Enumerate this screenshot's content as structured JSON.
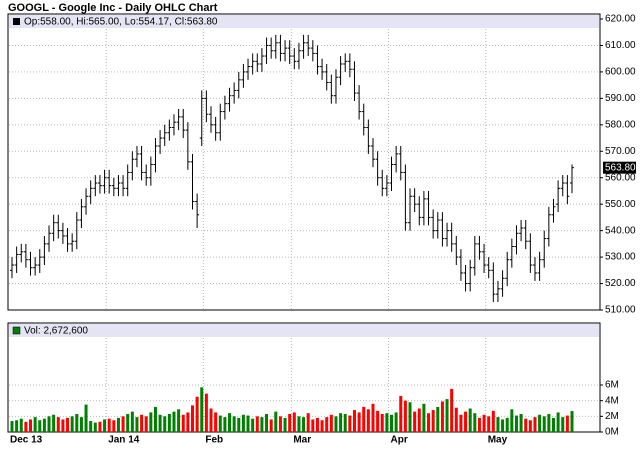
{
  "chart_data": [
    {
      "type": "ohlc",
      "title": "GOOGL - Google Inc - Daily OHLC Chart",
      "legend_label": "Op:558.00, Hi:565.00, Lo:554.17, Cl:563.80",
      "last_price": {
        "value": 563.8,
        "label": "563.80"
      },
      "categories": [
        "Dec 13",
        null,
        null,
        null,
        null,
        null,
        null,
        null,
        null,
        null,
        null,
        null,
        null,
        null,
        null,
        null,
        null,
        null,
        null,
        null,
        null,
        "Jan 14",
        null,
        null,
        null,
        null,
        null,
        null,
        null,
        null,
        null,
        null,
        null,
        null,
        null,
        null,
        null,
        null,
        null,
        null,
        null,
        null,
        "Feb",
        null,
        null,
        null,
        null,
        null,
        null,
        null,
        null,
        null,
        null,
        null,
        null,
        null,
        null,
        null,
        null,
        null,
        null,
        "Mar",
        null,
        null,
        null,
        null,
        null,
        null,
        null,
        null,
        null,
        null,
        null,
        null,
        null,
        null,
        null,
        null,
        null,
        null,
        null,
        null,
        "Apr",
        null,
        null,
        null,
        null,
        null,
        null,
        null,
        null,
        null,
        null,
        null,
        null,
        null,
        null,
        null,
        null,
        null,
        null,
        null,
        null,
        "May",
        null,
        null,
        null,
        null,
        null,
        null,
        null,
        null,
        null,
        null,
        null,
        null,
        null,
        null,
        null,
        null,
        null,
        null
      ],
      "open": [
        525,
        527,
        531,
        532,
        529,
        526,
        527,
        530,
        535,
        539,
        543,
        540,
        538,
        535,
        536,
        544,
        549,
        553,
        556,
        558,
        557,
        560,
        557,
        556,
        558,
        556,
        562,
        567,
        569,
        562,
        560,
        565,
        572,
        575,
        577,
        579,
        581,
        583,
        578,
        566,
        551,
        575,
        590,
        584,
        580,
        577,
        585,
        588,
        591,
        593,
        597,
        600,
        602,
        604,
        603,
        606,
        610,
        608,
        611,
        607,
        609,
        606,
        604,
        608,
        611,
        609,
        607,
        602,
        600,
        596,
        591,
        598,
        603,
        604,
        601,
        592,
        585,
        579,
        572,
        567,
        560,
        556,
        558,
        565,
        569,
        562,
        543,
        553,
        550,
        545,
        552,
        545,
        540,
        544,
        537,
        540,
        535,
        530,
        524,
        520,
        526,
        535,
        532,
        527,
        525,
        516,
        518,
        522,
        529,
        534,
        539,
        541,
        536,
        527,
        524,
        529,
        537,
        546,
        550,
        556,
        558,
        558
      ],
      "high": [
        530,
        534,
        535,
        535,
        532,
        530,
        533,
        538,
        542,
        546,
        546,
        543,
        541,
        539,
        547,
        552,
        556,
        559,
        561,
        561,
        563,
        563,
        560,
        561,
        561,
        565,
        570,
        572,
        572,
        565,
        568,
        575,
        578,
        580,
        582,
        584,
        586,
        586,
        581,
        569,
        554,
        593,
        593,
        587,
        583,
        588,
        591,
        594,
        596,
        600,
        603,
        605,
        607,
        607,
        609,
        613,
        613,
        614,
        614,
        612,
        612,
        609,
        611,
        614,
        614,
        612,
        610,
        605,
        603,
        599,
        601,
        606,
        607,
        607,
        604,
        595,
        588,
        582,
        575,
        570,
        563,
        561,
        568,
        572,
        572,
        565,
        556,
        556,
        553,
        555,
        555,
        548,
        547,
        547,
        543,
        543,
        538,
        533,
        527,
        529,
        538,
        538,
        535,
        530,
        528,
        521,
        525,
        532,
        537,
        542,
        544,
        544,
        539,
        530,
        532,
        540,
        549,
        552,
        559,
        561,
        561,
        565
      ],
      "low": [
        522,
        524,
        528,
        526,
        523,
        523,
        524,
        527,
        532,
        536,
        537,
        535,
        532,
        532,
        533,
        541,
        546,
        550,
        553,
        554,
        554,
        554,
        553,
        553,
        553,
        553,
        559,
        564,
        559,
        557,
        557,
        562,
        569,
        572,
        574,
        576,
        578,
        575,
        563,
        548,
        541,
        572,
        581,
        577,
        574,
        574,
        582,
        585,
        588,
        590,
        594,
        597,
        599,
        600,
        600,
        603,
        605,
        605,
        604,
        604,
        603,
        601,
        601,
        605,
        606,
        604,
        599,
        597,
        593,
        588,
        588,
        595,
        600,
        598,
        589,
        582,
        576,
        569,
        564,
        557,
        553,
        553,
        555,
        562,
        559,
        540,
        540,
        547,
        542,
        542,
        542,
        537,
        537,
        534,
        534,
        532,
        527,
        521,
        517,
        517,
        523,
        529,
        524,
        522,
        513,
        513,
        515,
        519,
        526,
        531,
        536,
        533,
        524,
        521,
        521,
        526,
        534,
        543,
        547,
        553,
        550,
        554.17
      ],
      "close": [
        527,
        531,
        532,
        529,
        526,
        527,
        530,
        535,
        539,
        543,
        540,
        538,
        535,
        536,
        544,
        549,
        553,
        556,
        558,
        557,
        560,
        557,
        556,
        558,
        556,
        562,
        567,
        569,
        562,
        560,
        565,
        572,
        575,
        577,
        579,
        581,
        583,
        578,
        566,
        551,
        546,
        590,
        584,
        580,
        577,
        585,
        588,
        591,
        593,
        597,
        600,
        602,
        604,
        603,
        606,
        610,
        608,
        611,
        607,
        609,
        606,
        604,
        608,
        611,
        609,
        607,
        602,
        600,
        596,
        591,
        598,
        603,
        604,
        601,
        592,
        585,
        579,
        572,
        567,
        560,
        556,
        558,
        565,
        569,
        562,
        543,
        553,
        550,
        545,
        552,
        545,
        540,
        544,
        537,
        540,
        535,
        530,
        524,
        520,
        526,
        535,
        532,
        527,
        525,
        516,
        518,
        522,
        529,
        534,
        539,
        541,
        536,
        527,
        524,
        529,
        537,
        546,
        549,
        556,
        558,
        553,
        563.8
      ],
      "color": "#000000",
      "ylim": [
        510,
        620
      ],
      "yticks": [
        {
          "value": 510,
          "label": "510.00"
        },
        {
          "value": 520,
          "label": "520.00"
        },
        {
          "value": 530,
          "label": "530.00"
        },
        {
          "value": 540,
          "label": "540.00"
        },
        {
          "value": 550,
          "label": "550.00"
        },
        {
          "value": 560,
          "label": "560.00"
        },
        {
          "value": 570,
          "label": "570.00"
        },
        {
          "value": 580,
          "label": "580.00"
        },
        {
          "value": 590,
          "label": "590.00"
        },
        {
          "value": 600,
          "label": "600.00"
        },
        {
          "value": 610,
          "label": "610.00"
        },
        {
          "value": 620,
          "label": "620.00"
        }
      ],
      "grid": true
    },
    {
      "type": "bar",
      "legend_label": "Vol: 2,672,600",
      "values": [
        1400000,
        1500000,
        1700000,
        1300000,
        1600000,
        1900000,
        1500000,
        1700000,
        2000000,
        2200000,
        1900000,
        1600000,
        1800000,
        2000000,
        2300000,
        1900000,
        3500000,
        1400000,
        1200000,
        1300000,
        1600000,
        1700000,
        1500000,
        1800000,
        2000000,
        2300000,
        2600000,
        1900000,
        2200000,
        2000000,
        2500000,
        3200000,
        2200000,
        2000000,
        2300000,
        2600000,
        2900000,
        2200000,
        2500000,
        3400000,
        4500000,
        5700000,
        4900000,
        3000000,
        2500000,
        2100000,
        1900000,
        2400000,
        2000000,
        1800000,
        2200000,
        2100000,
        1700000,
        2000000,
        1900000,
        2300000,
        1600000,
        2600000,
        2000000,
        1800000,
        2300000,
        2500000,
        2000000,
        1900000,
        2400000,
        1600000,
        1800000,
        1500000,
        1900000,
        2200000,
        2000000,
        2400000,
        2300000,
        2100000,
        2800000,
        2500000,
        3200000,
        2900000,
        3600000,
        2700000,
        2300000,
        2400000,
        2200000,
        2500000,
        4600000,
        4000000,
        3800000,
        2600000,
        3000000,
        3600000,
        2400000,
        2800000,
        3200000,
        3900000,
        4200000,
        5500000,
        3100000,
        2200000,
        2600000,
        3000000,
        2400000,
        1800000,
        2200000,
        2000000,
        2700000,
        1900000,
        1600000,
        1800000,
        2900000,
        2100000,
        2300000,
        1700000,
        1500000,
        1900000,
        2200000,
        2000000,
        2300000,
        1800000,
        2500000,
        1900000,
        2100000,
        2672600
      ],
      "up_color": "#008000",
      "down_color": "#ff0000",
      "ylim": [
        0,
        12000000
      ],
      "yticks": [
        {
          "value": 0,
          "label": "0M"
        },
        {
          "value": 2000000,
          "label": "2M"
        },
        {
          "value": 4000000,
          "label": "4M"
        },
        {
          "value": 6000000,
          "label": "6M"
        }
      ],
      "grid": true
    }
  ]
}
